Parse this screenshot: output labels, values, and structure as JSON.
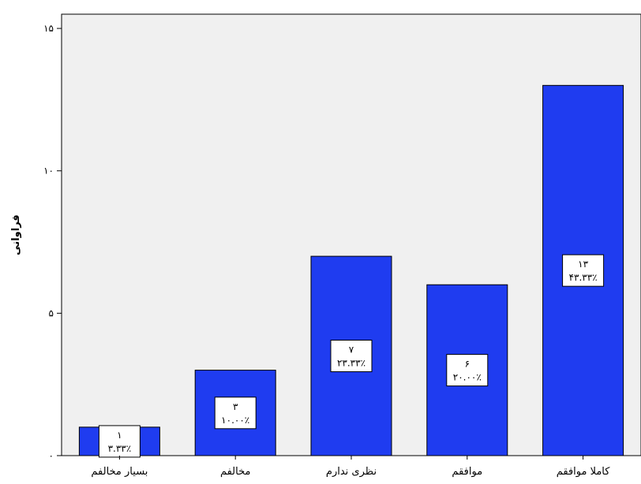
{
  "chart_data": {
    "type": "bar",
    "title": "",
    "xlabel": "",
    "ylabel": "فراوانی",
    "categories": [
      "بسیار مخالفم",
      "مخالفم",
      "نظری ندارم",
      "موافقم",
      "کاملا موافقم"
    ],
    "values": [
      1,
      3,
      7,
      6,
      13
    ],
    "value_labels": [
      "۱",
      "۳",
      "۷",
      "۶",
      "۱۳"
    ],
    "percent_labels": [
      "۳.۳۳٪",
      "۱۰.۰۰٪",
      "۲۳.۳۳٪",
      "۲۰.۰۰٪",
      "۴۳.۳۳٪"
    ],
    "ylim": [
      0,
      15.5
    ],
    "yticks": [
      0,
      5,
      10,
      15
    ],
    "ytick_labels": [
      "۰",
      "۵",
      "۱۰",
      "۱۵"
    ],
    "grid": false,
    "colors": {
      "bar": "#1f3cf0",
      "plot_background": "#f0f0f0",
      "label_box": "#ffffff"
    }
  }
}
